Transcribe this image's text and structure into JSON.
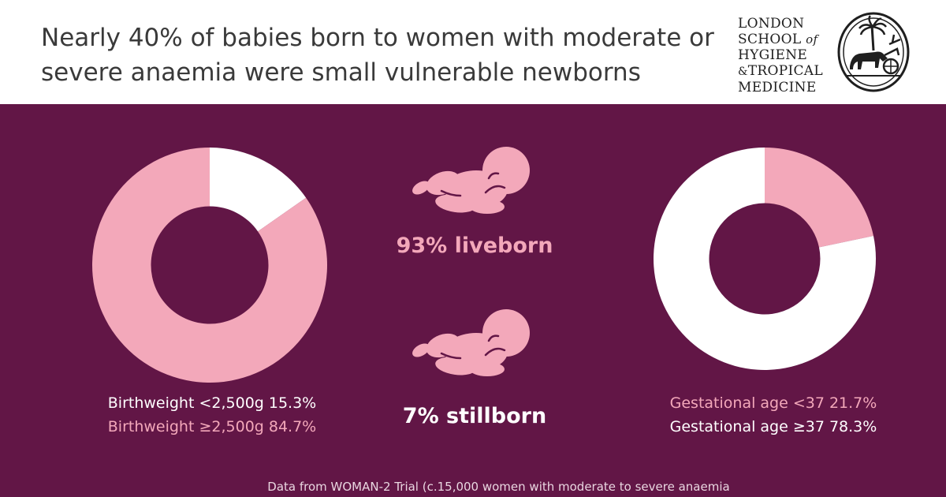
{
  "header": {
    "title": "Nearly 40% of babies born to women with moderate or severe anaemia were small vulnerable newborns"
  },
  "logo": {
    "line1": "LONDON",
    "line2_a": "SCHOOL",
    "line2_b": "of",
    "line3": "HYGIENE",
    "line4_amp": "&",
    "line4_b": "TROPICAL",
    "line5": "MEDICINE"
  },
  "colors": {
    "background": "#621646",
    "pink": "#f3a8ba",
    "white": "#ffffff"
  },
  "chart_data": [
    {
      "type": "pie",
      "donut": true,
      "slices": [
        {
          "label": "Birthweight <2,500g 15.3%",
          "value": 15.3,
          "color": "#ffffff"
        },
        {
          "label": "Birthweight ≥2,500g 84.7%",
          "value": 84.7,
          "color": "#f3a8ba"
        }
      ]
    },
    {
      "type": "pie",
      "donut": true,
      "slices": [
        {
          "label": "Gestational age <37 21.7%",
          "value": 21.7,
          "color": "#f3a8ba"
        },
        {
          "label": "Gestational age ≥37 78.3%",
          "value": 78.3,
          "color": "#ffffff"
        }
      ]
    }
  ],
  "stats": {
    "liveborn": "93% liveborn",
    "stillborn": "7% stillborn"
  },
  "icons": {
    "baby_top": "baby-icon",
    "baby_bottom": "baby-icon"
  },
  "footer": {
    "source": "Data from WOMAN-2 Trial (c.15,000 women with moderate to severe anaemia"
  }
}
